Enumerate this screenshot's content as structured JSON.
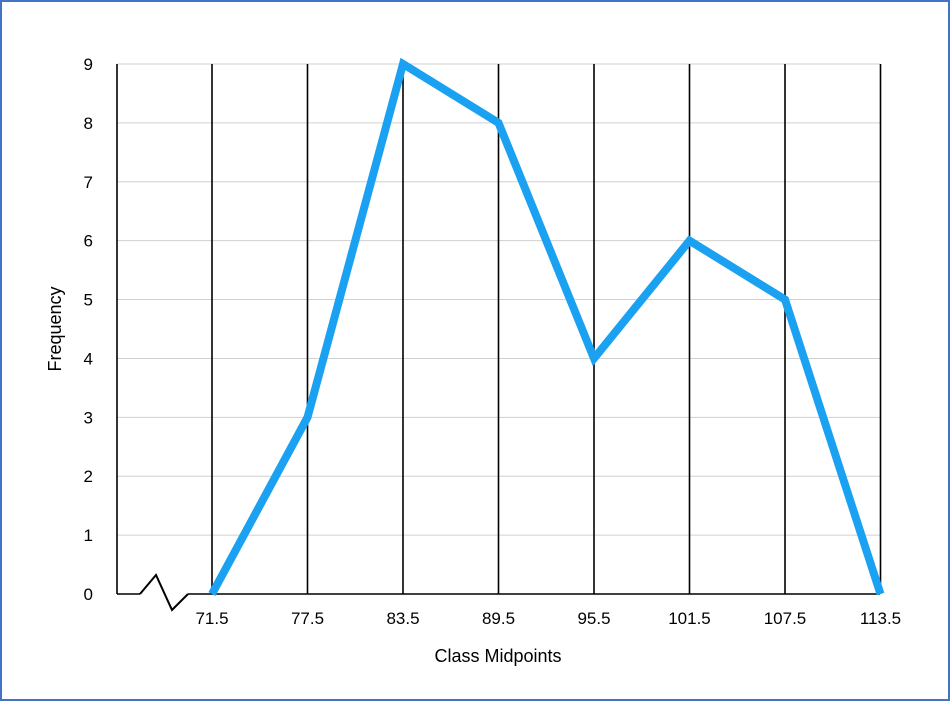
{
  "chart_data": {
    "type": "line",
    "title": "",
    "xlabel": "Class Midpoints",
    "ylabel": "Frequency",
    "x": [
      71.5,
      77.5,
      83.5,
      89.5,
      95.5,
      101.5,
      107.5,
      113.5
    ],
    "x_tick_labels": [
      "71.5",
      "77.5",
      "83.5",
      "89.5",
      "95.5",
      "101.5",
      "107.5",
      "113.5"
    ],
    "series": [
      {
        "values": [
          0,
          3,
          9,
          8,
          4,
          6,
          5,
          0
        ],
        "color": "#1ba1f2"
      }
    ],
    "ylim": [
      0,
      9
    ],
    "y_ticks": [
      0,
      1,
      2,
      3,
      4,
      5,
      6,
      7,
      8,
      9
    ],
    "x_axis_break": true,
    "grid": true,
    "frame_color": "#4472c4"
  }
}
